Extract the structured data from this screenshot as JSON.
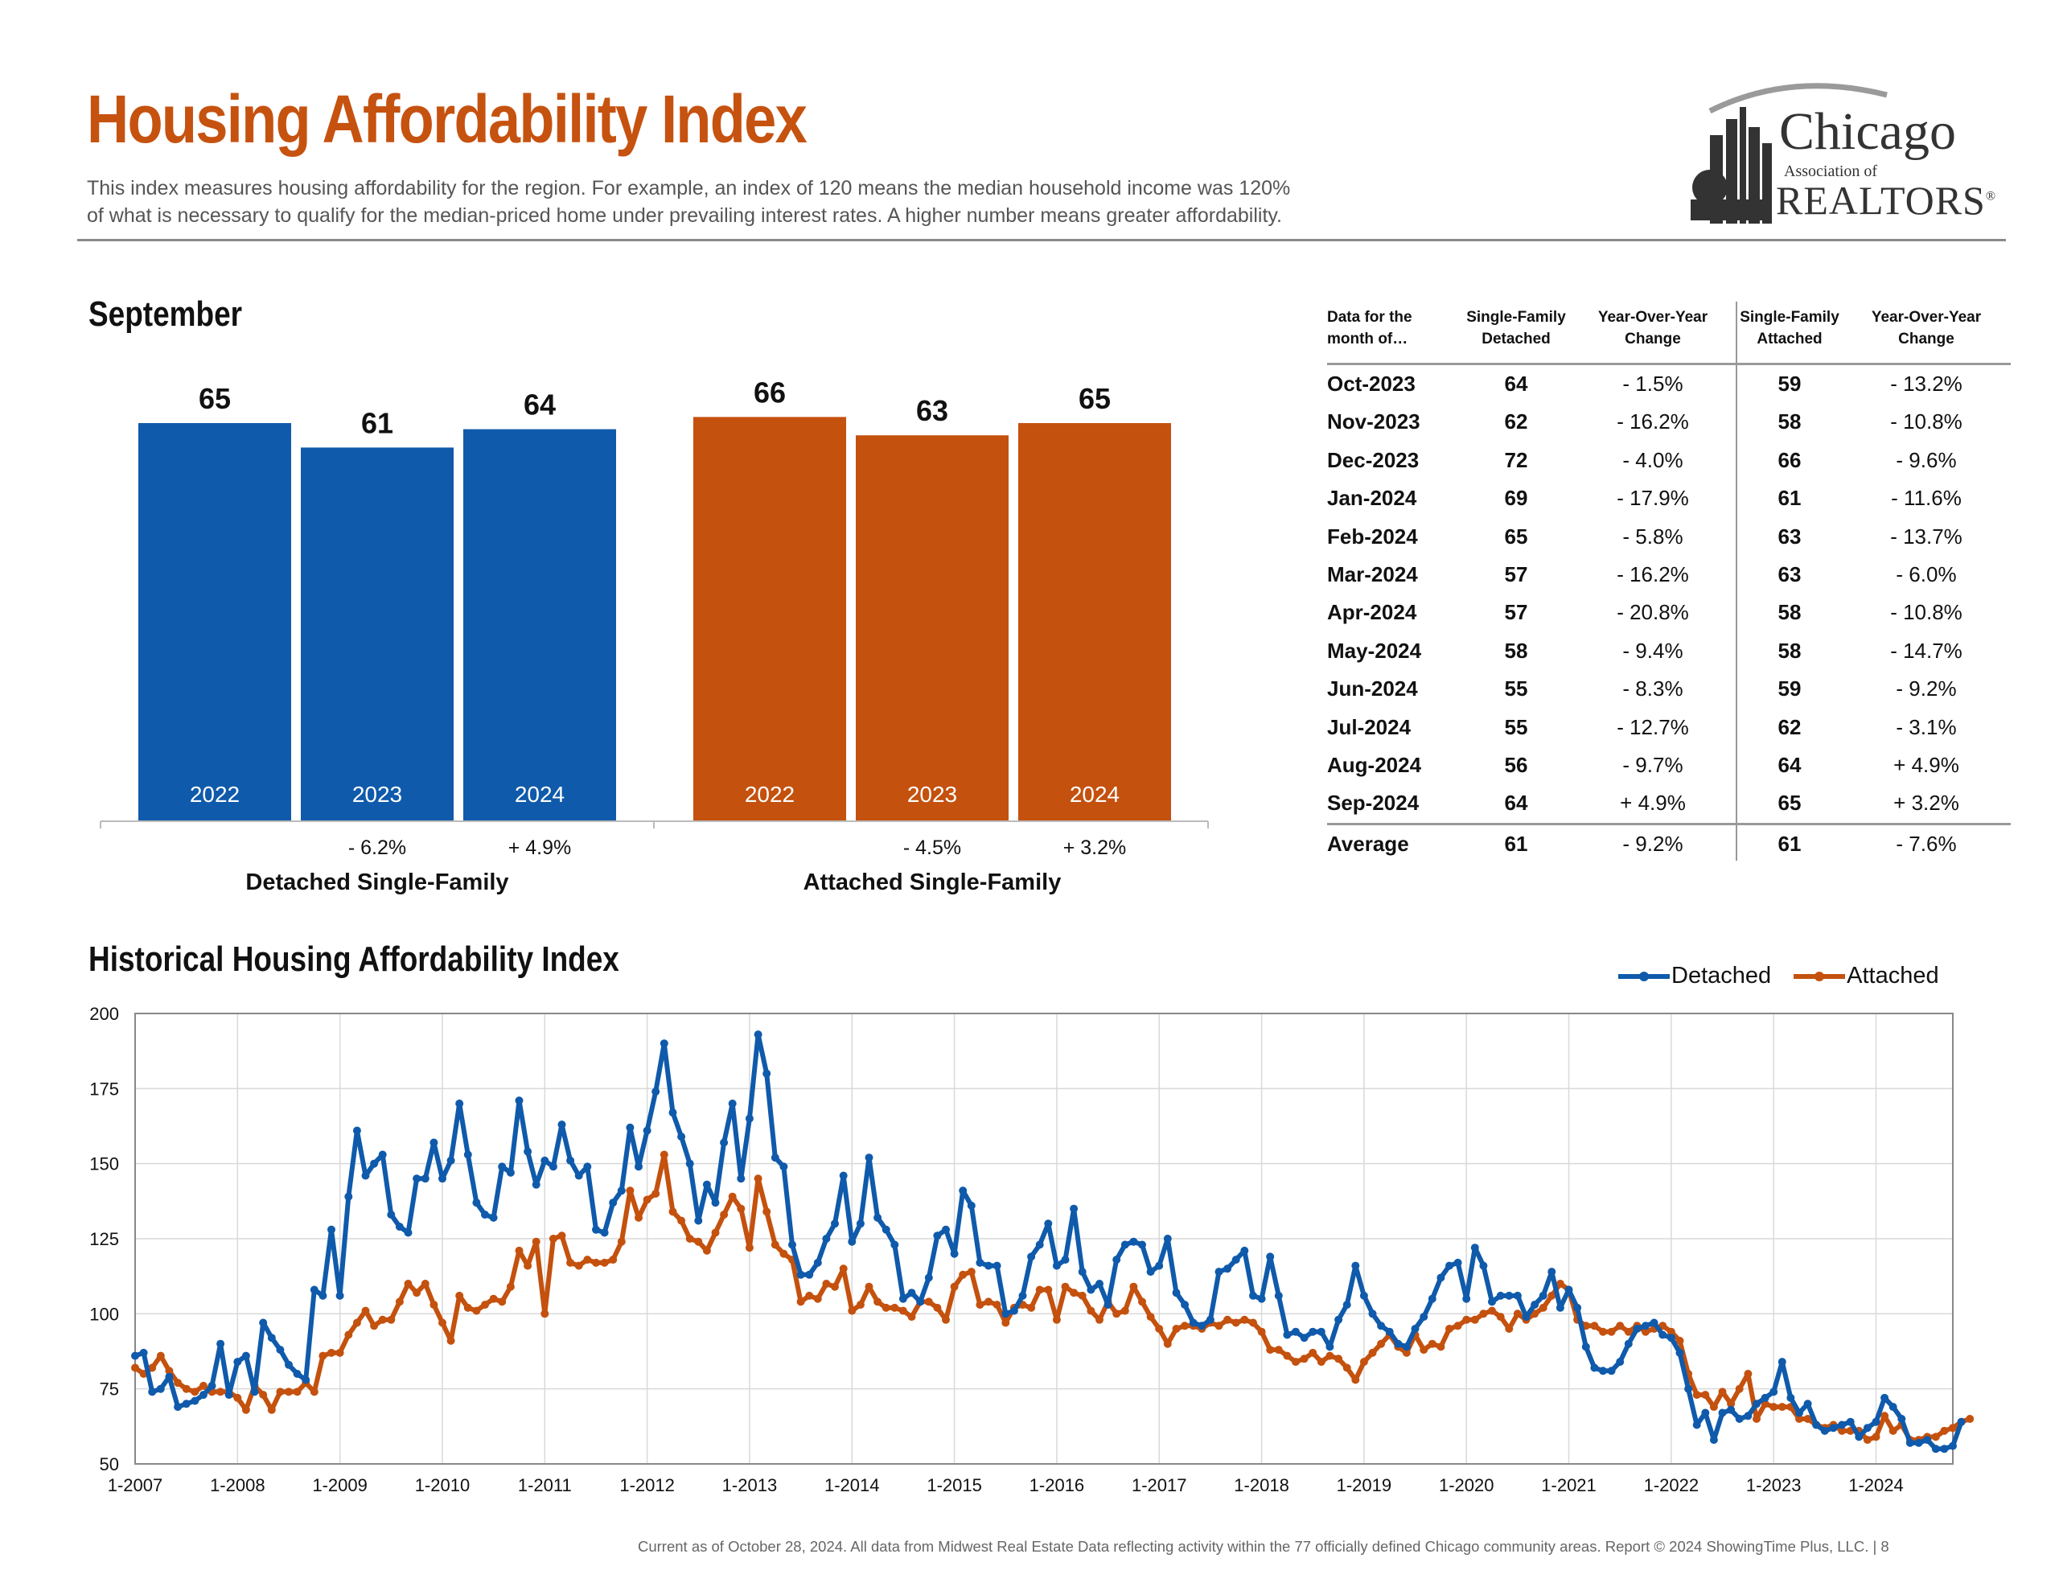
{
  "header": {
    "title": "Housing Affordability Index",
    "subtitle_line1": "This index measures housing affordability for the region. For example, an index of 120 means the median household income was 120%",
    "subtitle_line2": "of what is necessary to qualify for the median-priced home under prevailing interest rates. A higher number means greater affordability.",
    "logo_text": {
      "chicago": "Chicago",
      "association": "Association of",
      "realtors": "REALTORS",
      "mark": "®"
    }
  },
  "colors": {
    "title": "#c65210",
    "detached": "#0f5aab",
    "attached": "#c4510e",
    "grid": "#d9d9d9"
  },
  "september_section": {
    "heading": "September"
  },
  "history_section": {
    "heading": "Historical Housing Affordability Index"
  },
  "footer": "Current as of October 28, 2024.  All data from Midwest Real Estate Data reflecting activity within the 77 officially defined Chicago community areas. Report © 2024 ShowingTime Plus, LLC.  |  8",
  "table": {
    "headers": [
      "Data for the\nmonth of…",
      "Single-Family\nDetached",
      "Year-Over-Year\nChange",
      "Single-Family\nAttached",
      "Year-Over-Year\nChange"
    ],
    "rows": [
      [
        "Oct-2023",
        "64",
        "- 1.5%",
        "59",
        "- 13.2%"
      ],
      [
        "Nov-2023",
        "62",
        "- 16.2%",
        "58",
        "- 10.8%"
      ],
      [
        "Dec-2023",
        "72",
        "- 4.0%",
        "66",
        "- 9.6%"
      ],
      [
        "Jan-2024",
        "69",
        "- 17.9%",
        "61",
        "- 11.6%"
      ],
      [
        "Feb-2024",
        "65",
        "- 5.8%",
        "63",
        "- 13.7%"
      ],
      [
        "Mar-2024",
        "57",
        "- 16.2%",
        "63",
        "- 6.0%"
      ],
      [
        "Apr-2024",
        "57",
        "- 20.8%",
        "58",
        "- 10.8%"
      ],
      [
        "May-2024",
        "58",
        "- 9.4%",
        "58",
        "- 14.7%"
      ],
      [
        "Jun-2024",
        "55",
        "- 8.3%",
        "59",
        "- 9.2%"
      ],
      [
        "Jul-2024",
        "55",
        "- 12.7%",
        "62",
        "- 3.1%"
      ],
      [
        "Aug-2024",
        "56",
        "- 9.7%",
        "64",
        "+ 4.9%"
      ],
      [
        "Sep-2024",
        "64",
        "+ 4.9%",
        "65",
        "+ 3.2%"
      ]
    ],
    "average": [
      "Average",
      "61",
      "- 9.2%",
      "61",
      "- 7.6%"
    ]
  },
  "chart_data": [
    {
      "type": "bar",
      "title": "September",
      "groups": [
        {
          "name": "Detached Single-Family",
          "color": "#0f5aab",
          "categories": [
            "2022",
            "2023",
            "2024"
          ],
          "values": [
            65,
            61,
            64
          ],
          "changes": [
            "",
            "- 6.2%",
            "+ 4.9%"
          ]
        },
        {
          "name": "Attached Single-Family",
          "color": "#c4510e",
          "categories": [
            "2022",
            "2023",
            "2024"
          ],
          "values": [
            66,
            63,
            65
          ],
          "changes": [
            "",
            "- 4.5%",
            "+ 3.2%"
          ]
        }
      ],
      "ylim": [
        0,
        70
      ]
    },
    {
      "type": "line",
      "title": "Historical Housing Affordability Index",
      "legend_position": "top-right",
      "grid": true,
      "ylim": [
        50,
        200
      ],
      "yticks": [
        50,
        75,
        100,
        125,
        150,
        175,
        200
      ],
      "xlim": [
        "1-2007",
        "9-2024"
      ],
      "xticks": [
        "1-2007",
        "1-2008",
        "1-2009",
        "1-2010",
        "1-2011",
        "1-2012",
        "1-2013",
        "1-2014",
        "1-2015",
        "1-2016",
        "1-2017",
        "1-2018",
        "1-2019",
        "1-2020",
        "1-2021",
        "1-2022",
        "1-2023",
        "1-2024"
      ],
      "series": [
        {
          "name": "Detached",
          "color": "#0f5aab",
          "values": [
            86,
            87,
            74,
            75,
            79,
            69,
            70,
            71,
            73,
            76,
            90,
            73,
            84,
            86,
            74,
            97,
            92,
            88,
            83,
            80,
            78,
            108,
            106,
            128,
            106,
            139,
            161,
            146,
            150,
            153,
            133,
            129,
            127,
            145,
            145,
            157,
            145,
            151,
            170,
            153,
            137,
            133,
            132,
            149,
            147,
            171,
            154,
            143,
            151,
            149,
            163,
            151,
            146,
            149,
            128,
            127,
            137,
            141,
            162,
            149,
            161,
            174,
            190,
            167,
            159,
            150,
            131,
            143,
            137,
            157,
            170,
            145,
            165,
            193,
            180,
            152,
            149,
            123,
            113,
            113,
            117,
            125,
            130,
            146,
            124,
            130,
            152,
            132,
            128,
            123,
            105,
            107,
            104,
            112,
            126,
            128,
            120,
            141,
            136,
            117,
            116,
            116,
            100,
            101,
            106,
            119,
            123,
            130,
            116,
            118,
            135,
            114,
            108,
            110,
            103,
            118,
            123,
            124,
            123,
            114,
            116,
            125,
            107,
            103,
            97,
            96,
            98,
            114,
            115,
            118,
            121,
            106,
            105,
            119,
            106,
            93,
            94,
            92,
            94,
            94,
            89,
            98,
            103,
            116,
            106,
            100,
            96,
            94,
            90,
            89,
            95,
            99,
            105,
            112,
            116,
            117,
            105,
            122,
            116,
            104,
            106,
            106,
            106,
            99,
            103,
            106,
            114,
            102,
            108,
            102,
            89,
            82,
            81,
            81,
            84,
            90,
            95,
            96,
            97,
            93,
            92,
            87,
            75,
            63,
            67,
            58,
            67,
            68,
            65,
            66,
            70,
            72,
            74,
            84,
            72,
            67,
            70,
            63,
            61,
            62,
            63,
            64,
            59,
            62,
            64,
            72,
            69,
            65,
            57,
            57,
            58,
            55,
            55,
            56,
            64
          ]
        },
        {
          "name": "Attached",
          "color": "#c4510e",
          "values": [
            82,
            80,
            82,
            86,
            81,
            77,
            75,
            74,
            76,
            74,
            74,
            74,
            72,
            68,
            76,
            73,
            68,
            74,
            74,
            74,
            77,
            74,
            86,
            87,
            87,
            93,
            97,
            101,
            96,
            98,
            98,
            104,
            110,
            107,
            110,
            103,
            97,
            91,
            106,
            102,
            101,
            103,
            105,
            104,
            109,
            121,
            116,
            124,
            100,
            125,
            126,
            117,
            116,
            118,
            117,
            117,
            118,
            124,
            141,
            132,
            138,
            140,
            153,
            134,
            131,
            125,
            124,
            121,
            127,
            133,
            139,
            135,
            122,
            145,
            134,
            123,
            120,
            118,
            104,
            106,
            105,
            110,
            109,
            115,
            101,
            103,
            109,
            104,
            102,
            102,
            101,
            99,
            104,
            104,
            102,
            98,
            109,
            113,
            114,
            103,
            104,
            103,
            97,
            102,
            103,
            102,
            108,
            108,
            98,
            109,
            107,
            106,
            101,
            98,
            104,
            100,
            101,
            109,
            104,
            99,
            95,
            90,
            95,
            96,
            96,
            95,
            97,
            96,
            98,
            97,
            98,
            97,
            94,
            88,
            88,
            86,
            84,
            85,
            87,
            84,
            86,
            85,
            82,
            78,
            84,
            87,
            90,
            93,
            89,
            87,
            93,
            88,
            90,
            89,
            95,
            96,
            98,
            98,
            100,
            101,
            99,
            95,
            100,
            98,
            100,
            102,
            106,
            110,
            108,
            98,
            96,
            96,
            94,
            94,
            96,
            94,
            96,
            94,
            95,
            96,
            94,
            91,
            80,
            73,
            73,
            69,
            74,
            70,
            75,
            80,
            65,
            70,
            69,
            69,
            69,
            65,
            65,
            63,
            62,
            63,
            61,
            61,
            61,
            58,
            59,
            66,
            61,
            63,
            58,
            58,
            59,
            59,
            61,
            62,
            64,
            65
          ]
        }
      ]
    }
  ]
}
